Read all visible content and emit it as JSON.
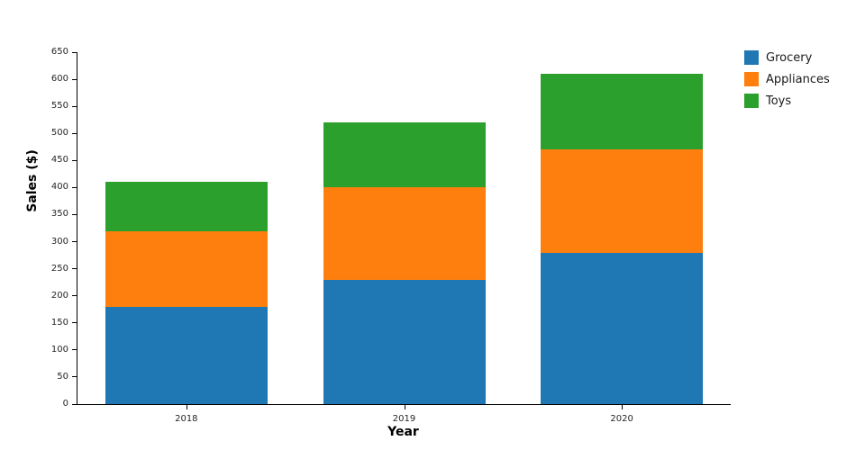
{
  "chart_data": {
    "type": "bar",
    "stacked": true,
    "title": "",
    "xlabel": "Year",
    "ylabel": "Sales ($)",
    "categories": [
      "2018",
      "2019",
      "2020"
    ],
    "series": [
      {
        "name": "Grocery",
        "color": "#1f77b4",
        "values": [
          180,
          230,
          280
        ]
      },
      {
        "name": "Appliances",
        "color": "#ff7f0e",
        "values": [
          140,
          170,
          190
        ]
      },
      {
        "name": "Toys",
        "color": "#2ca02c",
        "values": [
          90,
          120,
          140
        ]
      }
    ],
    "totals": [
      410,
      520,
      610
    ],
    "ylim": [
      0,
      650
    ],
    "ytick_step": 50,
    "grid": false,
    "legend_position": "top-right"
  }
}
